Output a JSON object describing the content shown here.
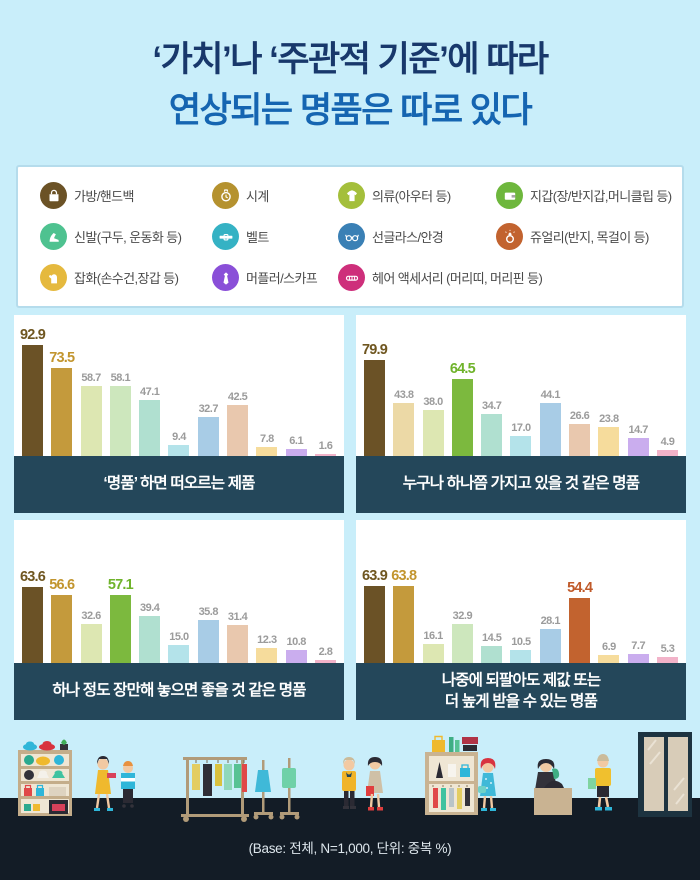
{
  "page": {
    "background": "#c9eefa",
    "title_line1": "‘가치’나 ‘주관적 기준’에 따라",
    "title_line2": "연상되는 명품은 따로 있다"
  },
  "legend": {
    "items": [
      {
        "label": "가방/핸드백",
        "icon": "bag-icon",
        "color": "#6b5226"
      },
      {
        "label": "시계",
        "icon": "watch-icon",
        "color": "#b5922f"
      },
      {
        "label": "의류(아우터 등)",
        "icon": "clothes-icon",
        "color": "#a4bf3b"
      },
      {
        "label": "지갑(장/반지갑,머니클립 등)",
        "icon": "wallet-icon",
        "color": "#6eb73d"
      },
      {
        "label": "신발(구두, 운동화 등)",
        "icon": "heel-icon",
        "color": "#4ec290"
      },
      {
        "label": "벨트",
        "icon": "belt-icon",
        "color": "#35b2c4"
      },
      {
        "label": "선글라스/안경",
        "icon": "glasses-icon",
        "color": "#3a80b5"
      },
      {
        "label": "쥬얼리(반지, 목걸이 등)",
        "icon": "ring-icon",
        "color": "#c2632f"
      },
      {
        "label": "잡화(손수건,장갑 등)",
        "icon": "glove-icon",
        "color": "#e5b93e"
      },
      {
        "label": "머플러/스카프",
        "icon": "scarf-icon",
        "color": "#8a4fd8"
      },
      {
        "label": "헤어 액세서리 (머리띠, 머리핀 등)",
        "icon": "hairpin-icon",
        "color": "#ce2f7b"
      }
    ]
  },
  "palette": {
    "muted": [
      "#6b5226",
      "#ecd9a6",
      "#dde7b2",
      "#cde7bd",
      "#b0e0d0",
      "#b4e3ea",
      "#a8cce6",
      "#e9c8ae",
      "#f6dc9c",
      "#caadee",
      "#f2b3c9"
    ],
    "accent": [
      "#6b5226",
      "#c49a3c",
      "#a4bf3b",
      "#7cb93e",
      "#4ec290",
      "#35b2c4",
      "#3a80b5",
      "#c2632f",
      "#e5b93e",
      "#8a4fd8",
      "#ce2f7b"
    ],
    "accent_label": [
      "#6f5620",
      "#c2952e",
      "#9cb832",
      "#6fb32a",
      "#3dab7d",
      "#2da4b6",
      "#3577ab",
      "#c05a2a",
      "#d3a52e",
      "#7e46cc",
      "#c22a72"
    ],
    "muted_label": "#9b9b9b",
    "band": "#24475a"
  },
  "chart_data": [
    {
      "type": "bar",
      "title": "‘명품’ 하면 떠오르는 제품",
      "categories": [
        "가방/핸드백",
        "시계",
        "의류(아우터 등)",
        "지갑(장/반지갑,머니클립 등)",
        "신발(구두, 운동화 등)",
        "벨트",
        "선글라스/안경",
        "쥬얼리(반지, 목걸이 등)",
        "잡화(손수건,장갑 등)",
        "머플러/스카프",
        "헤어 액세서리 (머리띠, 머리핀 등)"
      ],
      "values": [
        92.9,
        73.5,
        58.7,
        58.1,
        47.1,
        9.4,
        32.7,
        42.5,
        7.8,
        6.1,
        1.6
      ],
      "highlight": [
        0,
        1
      ],
      "unit": "중복 %",
      "ylim": [
        0,
        100
      ]
    },
    {
      "type": "bar",
      "title": "누구나 하나쯤 가지고 있을 것 같은 명품",
      "categories": [
        "가방/핸드백",
        "시계",
        "의류(아우터 등)",
        "지갑(장/반지갑,머니클립 등)",
        "신발(구두, 운동화 등)",
        "벨트",
        "선글라스/안경",
        "쥬얼리(반지, 목걸이 등)",
        "잡화(손수건,장갑 등)",
        "머플러/스카프",
        "헤어 액세서리 (머리띠, 머리핀 등)"
      ],
      "values": [
        79.9,
        43.8,
        38.0,
        64.5,
        34.7,
        17.0,
        44.1,
        26.6,
        23.8,
        14.7,
        4.9
      ],
      "highlight": [
        0,
        3
      ],
      "unit": "중복 %",
      "ylim": [
        0,
        100
      ]
    },
    {
      "type": "bar",
      "title": "하나 정도 장만해 놓으면 좋을 것 같은 명품",
      "categories": [
        "가방/핸드백",
        "시계",
        "의류(아우터 등)",
        "지갑(장/반지갑,머니클립 등)",
        "신발(구두, 운동화 등)",
        "벨트",
        "선글라스/안경",
        "쥬얼리(반지, 목걸이 등)",
        "잡화(손수건,장갑 등)",
        "머플러/스카프",
        "헤어 액세서리 (머리띠, 머리핀 등)"
      ],
      "values": [
        63.6,
        56.6,
        32.6,
        57.1,
        39.4,
        15.0,
        35.8,
        31.4,
        12.3,
        10.8,
        2.8
      ],
      "highlight": [
        0,
        1,
        3
      ],
      "unit": "중복 %",
      "ylim": [
        0,
        100
      ]
    },
    {
      "type": "bar",
      "title": "나중에 되팔아도 제값 또는\n더 높게 받을 수 있는 명품",
      "categories": [
        "가방/핸드백",
        "시계",
        "의류(아우터 등)",
        "지갑(장/반지갑,머니클립 등)",
        "신발(구두, 운동화 등)",
        "벨트",
        "선글라스/안경",
        "쥬얼리(반지, 목걸이 등)",
        "잡화(손수건,장갑 등)",
        "머플러/스카프",
        "헤어 액세서리 (머리띠, 머리핀 등)"
      ],
      "values": [
        63.9,
        63.8,
        16.1,
        32.9,
        14.5,
        10.5,
        28.1,
        54.4,
        6.9,
        7.7,
        5.3
      ],
      "highlight": [
        0,
        1,
        7
      ],
      "unit": "중복 %",
      "ylim": [
        0,
        100
      ]
    }
  ],
  "footer": {
    "base_note": "(Base: 전체, N=1,000, 단위: 중복 %)"
  }
}
